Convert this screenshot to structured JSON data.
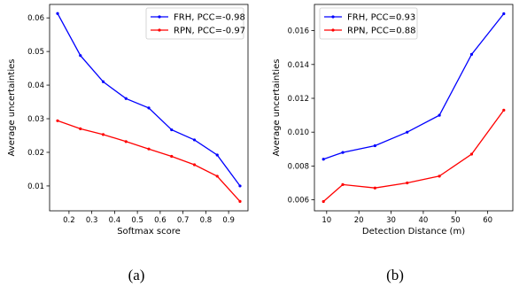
{
  "chart_data": [
    {
      "type": "line",
      "caption": "(a)",
      "xlabel": "Softmax score",
      "ylabel": "Average uncertainties",
      "xlim": [
        0.115,
        0.985
      ],
      "ylim": [
        0.0026,
        0.064
      ],
      "xticks": [
        0.2,
        0.3,
        0.4,
        0.5,
        0.6,
        0.7,
        0.8,
        0.9
      ],
      "yticks": [
        0.01,
        0.02,
        0.03,
        0.04,
        0.05,
        0.06
      ],
      "legend": "top-right",
      "grid": false,
      "series": [
        {
          "name": "FRH, PCC=-0.98",
          "color": "#0000ff",
          "x": [
            0.15,
            0.25,
            0.35,
            0.45,
            0.55,
            0.65,
            0.75,
            0.85,
            0.95
          ],
          "y": [
            0.0613,
            0.0488,
            0.041,
            0.036,
            0.0332,
            0.0267,
            0.0237,
            0.0192,
            0.01
          ]
        },
        {
          "name": "RPN, PCC=-0.97",
          "color": "#ff0000",
          "x": [
            0.15,
            0.25,
            0.35,
            0.45,
            0.55,
            0.65,
            0.75,
            0.85,
            0.95
          ],
          "y": [
            0.0294,
            0.027,
            0.0253,
            0.0232,
            0.021,
            0.0188,
            0.0163,
            0.0129,
            0.0054
          ]
        }
      ]
    },
    {
      "type": "line",
      "caption": "(b)",
      "xlabel": "Detection Distance (m)",
      "ylabel": "Average uncertainties",
      "xlim": [
        6.2,
        67.8
      ],
      "ylim": [
        0.00535,
        0.01755
      ],
      "xticks": [
        10,
        20,
        30,
        40,
        50,
        60
      ],
      "yticks": [
        0.006,
        0.008,
        0.01,
        0.012,
        0.014,
        0.016
      ],
      "ytick_labels": [
        "0.006",
        "0.008",
        "0.010",
        "0.012",
        "0.014",
        "0.016"
      ],
      "legend": "top-left",
      "grid": false,
      "series": [
        {
          "name": "FRH, PCC=0.93",
          "color": "#0000ff",
          "x": [
            9,
            15,
            25,
            35,
            45,
            55,
            65
          ],
          "y": [
            0.0084,
            0.0088,
            0.0092,
            0.01,
            0.011,
            0.0146,
            0.017
          ]
        },
        {
          "name": "RPN, PCC=0.88",
          "color": "#ff0000",
          "x": [
            9,
            15,
            25,
            35,
            45,
            55,
            65
          ],
          "y": [
            0.0059,
            0.0069,
            0.0067,
            0.007,
            0.0074,
            0.0087,
            0.0113
          ]
        }
      ]
    }
  ]
}
